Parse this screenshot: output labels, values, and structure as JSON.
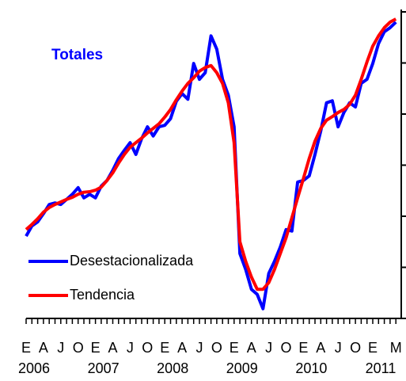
{
  "chart_data": {
    "type": "line",
    "title": "Totales",
    "categories": [
      "E",
      null,
      null,
      "A",
      null,
      null,
      "J",
      null,
      null,
      "O",
      null,
      null,
      "E",
      null,
      null,
      "A",
      null,
      null,
      "J",
      null,
      null,
      "O",
      null,
      null,
      "E",
      null,
      null,
      "A",
      null,
      null,
      "J",
      null,
      null,
      "O",
      null,
      null,
      "E",
      null,
      null,
      "A",
      null,
      null,
      "J",
      null,
      null,
      "O",
      null,
      null,
      "E",
      null,
      null,
      "A",
      null,
      null,
      "J",
      null,
      null,
      "O",
      null,
      null,
      "E",
      null,
      null,
      null,
      "M"
    ],
    "years": [
      "2006",
      "2007",
      "2008",
      "2009",
      "2010",
      "2011"
    ],
    "series": [
      {
        "name": "Desestacionalizada",
        "color": "#0000ff",
        "values": [
          1.61,
          1.81,
          1.89,
          2.05,
          2.23,
          2.26,
          2.23,
          2.33,
          2.43,
          2.56,
          2.36,
          2.43,
          2.36,
          2.59,
          2.7,
          2.9,
          3.13,
          3.29,
          3.44,
          3.21,
          3.52,
          3.75,
          3.57,
          3.75,
          3.78,
          3.91,
          4.25,
          4.4,
          4.29,
          4.99,
          4.68,
          4.81,
          5.53,
          5.27,
          4.68,
          4.37,
          3.75,
          1.27,
          0.96,
          0.57,
          0.47,
          0.19,
          0.88,
          1.12,
          1.4,
          1.74,
          1.71,
          2.67,
          2.7,
          2.79,
          3.21,
          3.67,
          4.22,
          4.26,
          3.75,
          4.03,
          4.22,
          4.14,
          4.6,
          4.68,
          4.99,
          5.38,
          5.61,
          5.69,
          5.8
        ]
      },
      {
        "name": "Tendencia",
        "color": "#ff0000",
        "values": [
          1.74,
          1.84,
          1.95,
          2.08,
          2.17,
          2.23,
          2.28,
          2.33,
          2.37,
          2.43,
          2.47,
          2.48,
          2.51,
          2.57,
          2.7,
          2.85,
          3.04,
          3.21,
          3.35,
          3.44,
          3.53,
          3.63,
          3.72,
          3.81,
          3.94,
          4.09,
          4.28,
          4.45,
          4.6,
          4.71,
          4.84,
          4.91,
          4.95,
          4.81,
          4.6,
          4.22,
          3.44,
          1.5,
          1.12,
          0.81,
          0.57,
          0.57,
          0.7,
          0.96,
          1.27,
          1.58,
          1.97,
          2.36,
          2.74,
          3.13,
          3.47,
          3.72,
          3.88,
          3.95,
          4.03,
          4.09,
          4.19,
          4.37,
          4.68,
          5.02,
          5.33,
          5.53,
          5.69,
          5.8,
          5.86
        ]
      }
    ],
    "ylim": [
      0,
      6
    ],
    "yticks": [
      0,
      1,
      2,
      3,
      4,
      5,
      6
    ],
    "legend": "lower-left"
  }
}
